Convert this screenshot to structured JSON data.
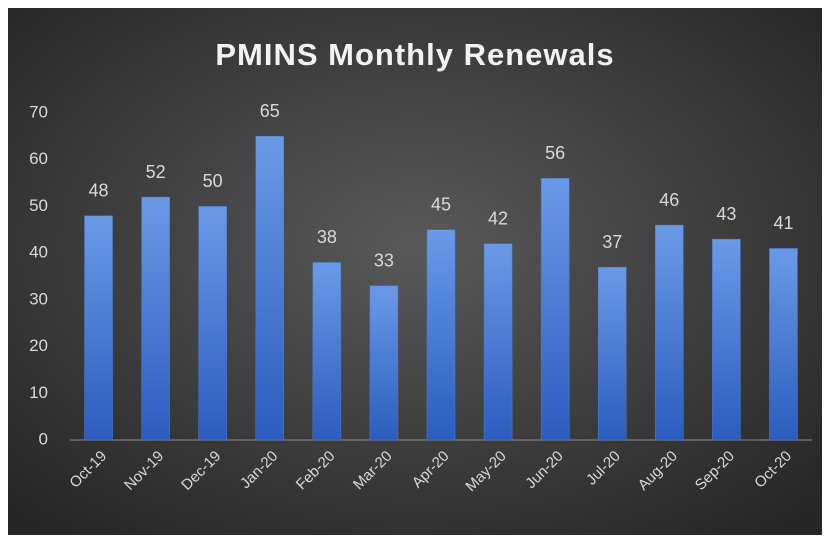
{
  "chart_data": {
    "type": "bar",
    "title": "PMINS Monthly Renewals",
    "categories": [
      "Oct-19",
      "Nov-19",
      "Dec-19",
      "Jan-20",
      "Feb-20",
      "Mar-20",
      "Apr-20",
      "May-20",
      "Jun-20",
      "Jul-20",
      "Aug-20",
      "Sep-20",
      "Oct-20"
    ],
    "values": [
      48,
      52,
      50,
      65,
      38,
      33,
      45,
      42,
      56,
      37,
      46,
      43,
      41
    ],
    "color": "#4a7fd6",
    "ylim": [
      0,
      70
    ],
    "yticks": [
      0,
      10,
      20,
      30,
      40,
      50,
      60,
      70
    ],
    "grid": false
  }
}
